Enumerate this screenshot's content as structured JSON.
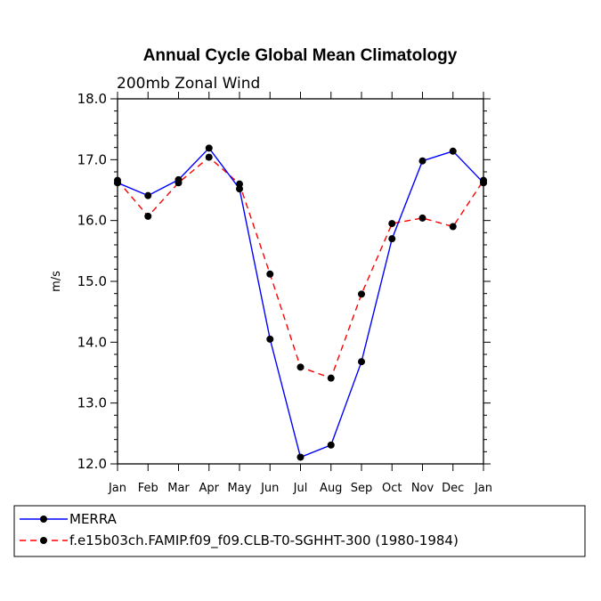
{
  "chart_data": {
    "type": "line",
    "title": "Annual Cycle Global Mean Climatology",
    "subtitle": "200mb Zonal Wind",
    "xlabel": "",
    "ylabel": "m/s",
    "categories": [
      "Jan",
      "Feb",
      "Mar",
      "Apr",
      "May",
      "Jun",
      "Jul",
      "Aug",
      "Sep",
      "Oct",
      "Nov",
      "Dec",
      "Jan"
    ],
    "ylim": [
      12.0,
      18.0
    ],
    "yticks": [
      "12.0",
      "13.0",
      "14.0",
      "15.0",
      "16.0",
      "17.0",
      "18.0"
    ],
    "grid": false,
    "legend_position": "bottom",
    "series": [
      {
        "name": "MERRA",
        "color": "#0000ff",
        "style": "solid",
        "values": [
          16.62,
          16.41,
          16.67,
          17.19,
          16.52,
          14.05,
          12.11,
          12.31,
          13.68,
          15.7,
          16.98,
          17.14,
          16.62
        ]
      },
      {
        "name": "f.e15b03ch.FAMIP.f09_f09.CLB-T0-SGHHT-300 (1980-1984)",
        "color": "#ff0000",
        "style": "dashed",
        "values": [
          16.66,
          16.07,
          16.62,
          17.04,
          16.6,
          15.12,
          13.59,
          13.41,
          14.79,
          15.95,
          16.04,
          15.9,
          16.66
        ]
      }
    ]
  }
}
